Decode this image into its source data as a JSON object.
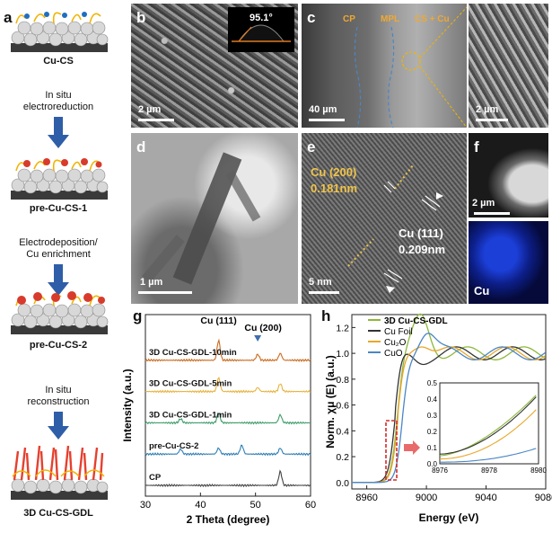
{
  "panels": {
    "a": {
      "letter": "a",
      "stages": [
        "Cu-CS",
        "pre-Cu-CS-1",
        "pre-Cu-CS-2",
        "3D Cu-CS-GDL"
      ],
      "steps": [
        [
          "In situ",
          "electroreduction"
        ],
        [
          "Electrodeposition/",
          "Cu enrichment"
        ],
        [
          "In situ",
          "reconstruction"
        ]
      ]
    },
    "b": {
      "letter": "b",
      "scale": "2 µm",
      "contact_angle": "95.1°"
    },
    "c": {
      "letter": "c",
      "scale_left": "40 µm",
      "scale_right": "2 µm",
      "labels": [
        "CP",
        "MPL",
        "CS + Cu"
      ]
    },
    "d": {
      "letter": "d",
      "scale": "1 µm"
    },
    "e": {
      "letter": "e",
      "scale": "5 nm",
      "lattice_1_plane": "Cu (200)",
      "lattice_1_spacing": "0.181nm",
      "lattice_2_plane": "Cu (111)",
      "lattice_2_spacing": "0.209nm"
    },
    "f": {
      "letter": "f",
      "scale": "2 µm",
      "element": "Cu"
    },
    "g": {
      "letter": "g"
    },
    "h": {
      "letter": "h"
    }
  },
  "chart_data": [
    {
      "type": "line",
      "panel": "g",
      "xlabel": "2 Theta (degree)",
      "ylabel": "Intensity (a.u.)",
      "xlim": [
        30,
        60
      ],
      "xticks": [
        30,
        40,
        50,
        60
      ],
      "peak_labels": [
        {
          "text": "Cu (111)",
          "x": 43.3
        },
        {
          "text": "Cu (200)",
          "x": 50.4
        }
      ],
      "series": [
        {
          "name": "3D Cu-CS-GDL-10min",
          "color": "#cc6a1e",
          "peaks": [
            [
              43.3,
              1.0
            ],
            [
              50.4,
              0.3
            ],
            [
              54.5,
              0.35
            ]
          ]
        },
        {
          "name": "3D Cu-CS-GDL-5min",
          "color": "#e8b23a",
          "peaks": [
            [
              43.3,
              0.7
            ],
            [
              50.4,
              0.2
            ],
            [
              54.5,
              0.4
            ]
          ]
        },
        {
          "name": "3D Cu-CS-GDL-1min",
          "color": "#3e9c6a",
          "peaks": [
            [
              36.4,
              0.2
            ],
            [
              43.3,
              0.5
            ],
            [
              54.5,
              0.4
            ]
          ]
        },
        {
          "name": "pre-Cu-CS-2",
          "color": "#2f7fb5",
          "peaks": [
            [
              36.4,
              0.25
            ],
            [
              43.3,
              0.3
            ],
            [
              47.5,
              0.45
            ],
            [
              54.5,
              0.3
            ]
          ]
        },
        {
          "name": "CP",
          "color": "#444444",
          "peaks": [
            [
              54.5,
              0.7
            ]
          ]
        }
      ]
    },
    {
      "type": "line",
      "panel": "h",
      "xlabel": "Energy (eV)",
      "ylabel": "Norm. χμ (E) (a.u.)",
      "xlim": [
        8950,
        9080
      ],
      "ylim": [
        -0.05,
        1.3
      ],
      "xticks": [
        8960,
        9000,
        9040,
        9080
      ],
      "yticks": [
        0.0,
        0.2,
        0.4,
        0.6,
        0.8,
        1.0,
        1.2
      ],
      "legend": "top-left",
      "series": [
        {
          "name": "3D Cu-CS-GDL",
          "color": "#8db83a"
        },
        {
          "name": "Cu Foil",
          "color": "#333333"
        },
        {
          "name": "Cu₂O",
          "color": "#e8a72a"
        },
        {
          "name": "CuO",
          "color": "#4a86c6"
        }
      ],
      "inset": {
        "xlim": [
          8976,
          8980
        ],
        "ylim": [
          0.0,
          0.5
        ],
        "xticks": [
          8976,
          8978,
          8980
        ],
        "yticks": [
          0.0,
          0.1,
          0.2,
          0.3,
          0.4,
          0.5
        ]
      }
    }
  ]
}
